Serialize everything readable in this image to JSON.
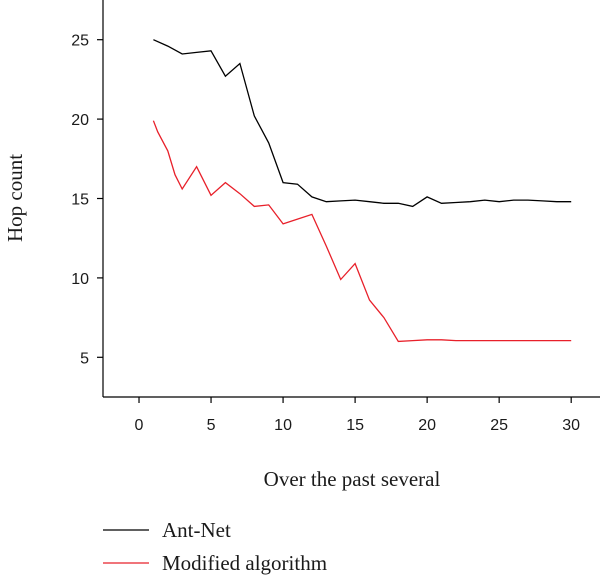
{
  "chart_data": {
    "type": "line",
    "xlabel": "Over the past several",
    "ylabel": "Hop count",
    "xlim": [
      -2.5,
      32
    ],
    "ylim": [
      2.5,
      27.5
    ],
    "xticks": [
      0,
      5,
      10,
      15,
      20,
      25,
      30
    ],
    "yticks": [
      5,
      10,
      15,
      20,
      25
    ],
    "grid": false,
    "legend_position": "bottom-left",
    "series": [
      {
        "name": "Ant-Net",
        "color": "#000000",
        "x": [
          1,
          2,
          3,
          4,
          5,
          6,
          7,
          8,
          9,
          10,
          11,
          12,
          13,
          14,
          15,
          16,
          17,
          18,
          19,
          20,
          21,
          22,
          23,
          24,
          25,
          26,
          27,
          28,
          29,
          30
        ],
        "y": [
          25.0,
          24.6,
          24.1,
          24.2,
          24.3,
          22.7,
          23.5,
          20.2,
          18.5,
          16.0,
          15.9,
          15.1,
          14.8,
          14.85,
          14.9,
          14.8,
          14.7,
          14.7,
          14.5,
          15.1,
          14.7,
          14.75,
          14.8,
          14.9,
          14.8,
          14.9,
          14.9,
          14.85,
          14.8,
          14.8
        ]
      },
      {
        "name": "Modified algorithm",
        "color": "#e8202a",
        "x": [
          1,
          1.3,
          2,
          2.5,
          3,
          4,
          5,
          6,
          7,
          8,
          9,
          10,
          11,
          12,
          13,
          14,
          15,
          16,
          17,
          18,
          19,
          20,
          21,
          22,
          23,
          24,
          25,
          26,
          27,
          28,
          29,
          30
        ],
        "y": [
          19.9,
          19.2,
          18.0,
          16.5,
          15.6,
          17.0,
          15.2,
          16.0,
          15.3,
          14.5,
          14.6,
          13.4,
          13.7,
          14.0,
          12.0,
          9.9,
          10.9,
          8.6,
          7.5,
          6.0,
          6.05,
          6.1,
          6.1,
          6.05,
          6.05,
          6.05,
          6.05,
          6.05,
          6.05,
          6.05,
          6.05,
          6.05
        ]
      }
    ]
  }
}
